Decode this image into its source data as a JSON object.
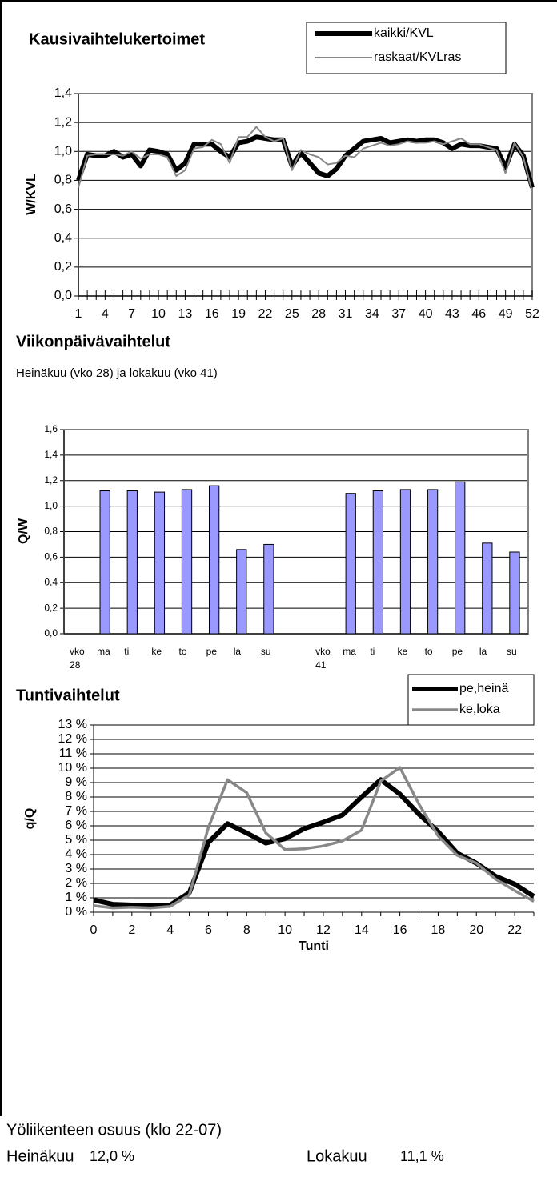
{
  "chart_data": [
    {
      "type": "line",
      "title": "Kausivaihtelukertoimet",
      "ylabel": "W/KVL",
      "grid": true,
      "legend": "upper right",
      "x": [
        1,
        2,
        3,
        4,
        5,
        6,
        7,
        8,
        9,
        10,
        11,
        12,
        13,
        14,
        15,
        16,
        17,
        18,
        19,
        20,
        21,
        22,
        23,
        24,
        25,
        26,
        27,
        28,
        29,
        30,
        31,
        32,
        33,
        34,
        35,
        36,
        37,
        38,
        39,
        40,
        41,
        42,
        43,
        44,
        45,
        46,
        47,
        48,
        49,
        50,
        51,
        52
      ],
      "xlim": [
        1,
        52
      ],
      "xticks": [
        1,
        4,
        7,
        10,
        13,
        16,
        19,
        22,
        25,
        28,
        31,
        34,
        37,
        40,
        43,
        46,
        49,
        52
      ],
      "ylim": [
        0,
        1.4
      ],
      "yticks": [
        {
          "value": 0,
          "label": "0,0"
        },
        {
          "value": 0.2,
          "label": "0,2"
        },
        {
          "value": 0.4,
          "label": "0,4"
        },
        {
          "value": 0.6,
          "label": "0,6"
        },
        {
          "value": 0.8,
          "label": "0,8"
        },
        {
          "value": 1.0,
          "label": "1,0"
        },
        {
          "value": 1.2,
          "label": "1,2"
        },
        {
          "value": 1.4,
          "label": "1,4"
        }
      ],
      "series": [
        {
          "name": "kaikki/KVL",
          "color": "#000000",
          "values": [
            0.8,
            0.98,
            0.97,
            0.97,
            1.0,
            0.96,
            0.98,
            0.9,
            1.01,
            1.0,
            0.98,
            0.87,
            0.92,
            1.05,
            1.05,
            1.05,
            1.0,
            0.96,
            1.06,
            1.07,
            1.1,
            1.09,
            1.08,
            1.08,
            0.9,
            0.99,
            0.92,
            0.85,
            0.83,
            0.88,
            0.97,
            1.02,
            1.07,
            1.08,
            1.09,
            1.06,
            1.07,
            1.08,
            1.07,
            1.08,
            1.08,
            1.06,
            1.02,
            1.05,
            1.04,
            1.04,
            1.03,
            1.02,
            0.89,
            1.05,
            0.97,
            0.75
          ]
        },
        {
          "name": "raskaat/KVLras",
          "color": "#888888",
          "values": [
            0.75,
            0.97,
            0.98,
            0.98,
            0.98,
            0.97,
            1.0,
            0.95,
            0.98,
            0.98,
            0.96,
            0.83,
            0.87,
            1.02,
            1.03,
            1.08,
            1.05,
            0.92,
            1.1,
            1.1,
            1.17,
            1.1,
            1.07,
            1.09,
            0.87,
            1.01,
            0.98,
            0.96,
            0.91,
            0.92,
            0.97,
            0.96,
            1.02,
            1.04,
            1.06,
            1.04,
            1.05,
            1.07,
            1.06,
            1.06,
            1.07,
            1.05,
            1.07,
            1.09,
            1.05,
            1.05,
            1.03,
            1.01,
            0.85,
            1.06,
            0.96,
            0.72
          ]
        }
      ]
    },
    {
      "type": "bar",
      "title": "Viikonpäivävaihtelut",
      "subtitle": "Heinäkuu (vko 28) ja lokakuu (vko 41)",
      "ylabel": "Q/W",
      "grid": true,
      "color": "#9999ff",
      "categories": [
        "vko 28",
        "ma",
        "ti",
        "ke",
        "to",
        "pe",
        "la",
        "su",
        null,
        "vko 41",
        "ma",
        "ti",
        "ke",
        "to",
        "pe",
        "la",
        "su"
      ],
      "values": [
        null,
        1.12,
        1.12,
        1.11,
        1.13,
        1.16,
        0.66,
        0.7,
        null,
        null,
        1.1,
        1.12,
        1.13,
        1.13,
        1.19,
        0.71,
        0.64
      ],
      "ylim": [
        0,
        1.6
      ],
      "yticks": [
        {
          "value": 0,
          "label": "0,0"
        },
        {
          "value": 0.2,
          "label": "0,2"
        },
        {
          "value": 0.4,
          "label": "0,4"
        },
        {
          "value": 0.6,
          "label": "0,6"
        },
        {
          "value": 0.8,
          "label": "0,8"
        },
        {
          "value": 1.0,
          "label": "1,0"
        },
        {
          "value": 1.2,
          "label": "1,2"
        },
        {
          "value": 1.4,
          "label": "1,4"
        },
        {
          "value": 1.6,
          "label": "1,6"
        }
      ]
    },
    {
      "type": "line",
      "title": "Tuntivaihtelut",
      "xlabel": "Tunti",
      "ylabel": "q/Q",
      "grid": true,
      "legend": "upper right",
      "x": [
        0,
        1,
        2,
        3,
        4,
        5,
        6,
        7,
        8,
        9,
        10,
        11,
        12,
        13,
        14,
        15,
        16,
        17,
        18,
        19,
        20,
        21,
        22,
        23
      ],
      "xlim": [
        0,
        23
      ],
      "xticks": [
        0,
        2,
        4,
        6,
        8,
        10,
        12,
        14,
        16,
        18,
        20,
        22
      ],
      "ylim": [
        0,
        13
      ],
      "yticks": [
        {
          "value": 0,
          "label": "0 %"
        },
        {
          "value": 1,
          "label": "1 %"
        },
        {
          "value": 2,
          "label": "2 %"
        },
        {
          "value": 3,
          "label": "3 %"
        },
        {
          "value": 4,
          "label": "4 %"
        },
        {
          "value": 5,
          "label": "5 %"
        },
        {
          "value": 6,
          "label": "6 %"
        },
        {
          "value": 7,
          "label": "7 %"
        },
        {
          "value": 8,
          "label": "8 %"
        },
        {
          "value": 9,
          "label": "9 %"
        },
        {
          "value": 10,
          "label": "10 %"
        },
        {
          "value": 11,
          "label": "11 %"
        },
        {
          "value": 12,
          "label": "12 %"
        },
        {
          "value": 13,
          "label": "13 %"
        }
      ],
      "series": [
        {
          "name": "pe,heinä",
          "color": "#000000",
          "values": [
            0.85,
            0.55,
            0.5,
            0.45,
            0.5,
            1.35,
            4.85,
            6.15,
            5.5,
            4.8,
            5.1,
            5.8,
            6.25,
            6.75,
            8.0,
            9.2,
            8.2,
            6.8,
            5.6,
            4.1,
            3.4,
            2.5,
            1.95,
            1.1
          ]
        },
        {
          "name": "ke,loka",
          "color": "#888888",
          "values": [
            0.45,
            0.3,
            0.35,
            0.3,
            0.4,
            1.2,
            5.9,
            9.2,
            8.3,
            5.5,
            4.35,
            4.4,
            4.6,
            4.95,
            5.7,
            9.1,
            10.05,
            7.5,
            5.3,
            3.95,
            3.4,
            2.3,
            1.5,
            0.75
          ]
        }
      ]
    }
  ],
  "footer": {
    "title": "Yöliikenteen osuus (klo 22-07)",
    "rows": [
      [
        "Heinäkuu",
        "12,0 %"
      ],
      [
        "Lokakuu",
        "11,1 %"
      ]
    ]
  }
}
